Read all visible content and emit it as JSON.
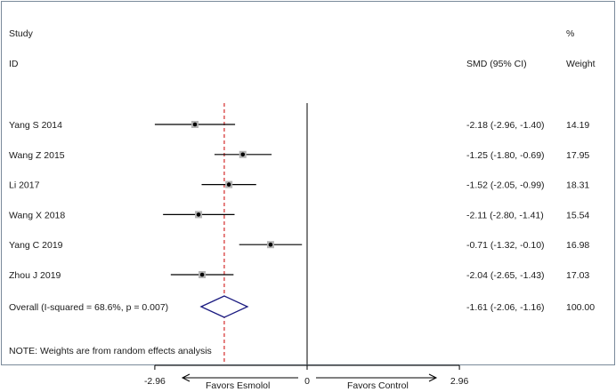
{
  "header": {
    "col_study_top": "Study",
    "col_study_bottom": "ID",
    "col_effect": "SMD (95% CI)",
    "col_weight_top": "%",
    "col_weight_bottom": "Weight"
  },
  "footer_note": "NOTE: Weights are from random effects analysis",
  "colors": {
    "line": "#000000",
    "reference_line": "#cc0000",
    "diamond": "#1a1a80",
    "border": "#7a8a9a"
  },
  "chart_data": {
    "type": "forest",
    "measure": "SMD",
    "studies": [
      {
        "id": "Yang S 2014",
        "smd": -2.18,
        "ci": [
          -2.96,
          -1.4
        ],
        "ci_label": "-2.18 (-2.96, -1.40)",
        "weight": "14.19"
      },
      {
        "id": "Wang Z 2015",
        "smd": -1.25,
        "ci": [
          -1.8,
          -0.69
        ],
        "ci_label": "-1.25 (-1.80, -0.69)",
        "weight": "17.95"
      },
      {
        "id": "Li 2017",
        "smd": -1.52,
        "ci": [
          -2.05,
          -0.99
        ],
        "ci_label": "-1.52 (-2.05, -0.99)",
        "weight": "18.31"
      },
      {
        "id": "Wang X 2018",
        "smd": -2.11,
        "ci": [
          -2.8,
          -1.41
        ],
        "ci_label": "-2.11 (-2.80, -1.41)",
        "weight": "15.54"
      },
      {
        "id": "Yang C 2019",
        "smd": -0.71,
        "ci": [
          -1.32,
          -0.1
        ],
        "ci_label": "-0.71 (-1.32, -0.10)",
        "weight": "16.98"
      },
      {
        "id": "Zhou J 2019",
        "smd": -2.04,
        "ci": [
          -2.65,
          -1.43
        ],
        "ci_label": "-2.04 (-2.65, -1.43)",
        "weight": "17.03"
      }
    ],
    "overall": {
      "id": "Overall  (I-squared = 68.6%, p = 0.007)",
      "smd": -1.61,
      "ci": [
        -2.06,
        -1.16
      ],
      "ci_label": "-1.61 (-2.06, -1.16)",
      "weight": "100.00"
    },
    "null_value": 0,
    "xlim": [
      -2.96,
      2.96
    ],
    "x_ticks": [
      {
        "value": -2.96,
        "label": "-2.96"
      },
      {
        "value": 0,
        "label": "0"
      },
      {
        "value": 2.96,
        "label": "2.96"
      }
    ],
    "favors_left": "Favors Esmolol",
    "favors_right": "Favors Control"
  }
}
